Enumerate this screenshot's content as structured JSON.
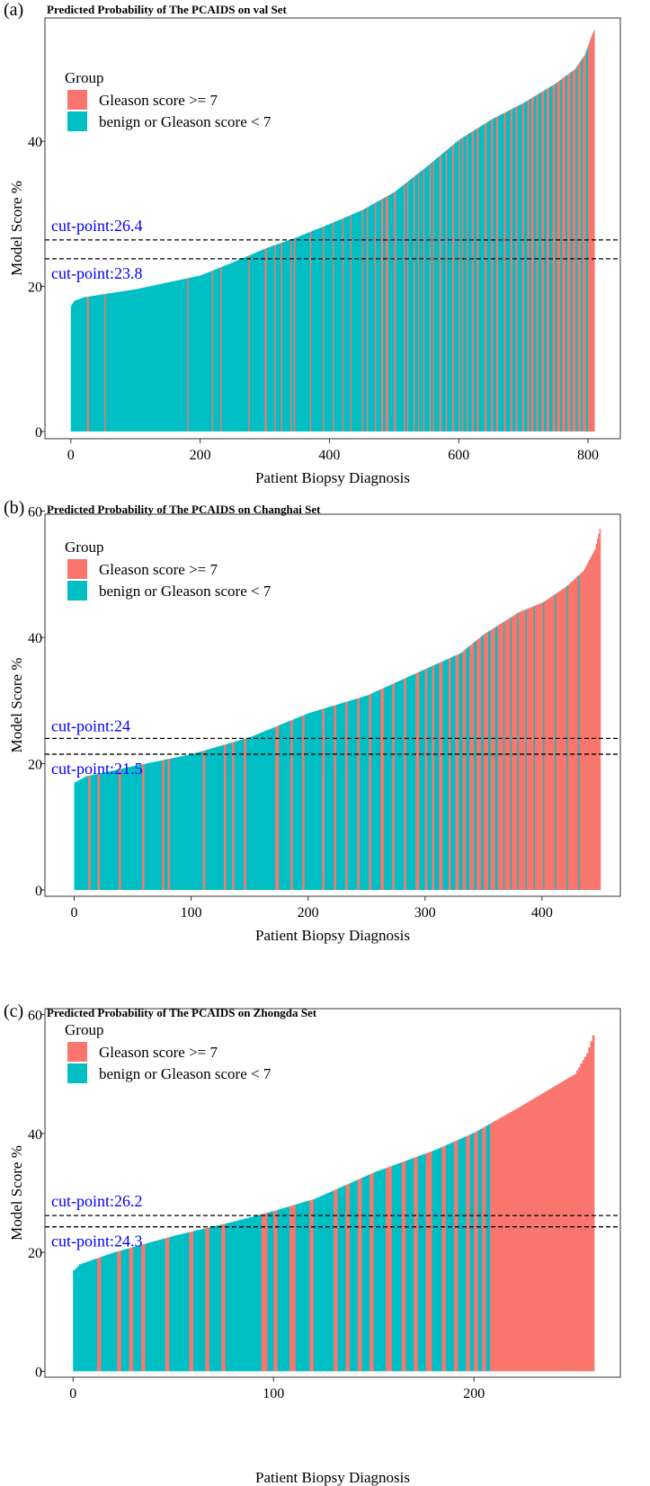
{
  "colors": {
    "high": "#F8766D",
    "low": "#00BFC4",
    "cut": "#0000FF",
    "frame": "#333333"
  },
  "legend": {
    "title": "Group",
    "labels": [
      "Gleason score >= 7",
      "benign or Gleason score < 7"
    ]
  },
  "panels": [
    {
      "letter": "(a)",
      "title": "Predicted Probability of The PCAIDS on val Set"
    },
    {
      "letter": "(b)",
      "title": "Predicted Probability of The PCAIDS on Changhai Set"
    },
    {
      "letter": "(c)",
      "title": "Predicted Probability of The PCAIDS on Zhongda Set"
    }
  ],
  "chart_data": [
    {
      "type": "bar",
      "title": "Predicted Probability of The PCAIDS on val Set",
      "xlabel": "Patient Biopsy Diagnosis",
      "ylabel": "Model Score %",
      "n": 810,
      "xlim": [
        -40,
        850
      ],
      "ylim": [
        -1,
        57
      ],
      "xticks": [
        0,
        200,
        400,
        600,
        800
      ],
      "yticks": [
        0,
        20,
        40
      ],
      "curve": [
        [
          0,
          17.3
        ],
        [
          5,
          18.0
        ],
        [
          20,
          18.5
        ],
        [
          100,
          19.6
        ],
        [
          200,
          21.5
        ],
        [
          250,
          23.3
        ],
        [
          300,
          25.2
        ],
        [
          350,
          26.8
        ],
        [
          400,
          28.6
        ],
        [
          450,
          30.5
        ],
        [
          500,
          33.0
        ],
        [
          550,
          36.5
        ],
        [
          600,
          40.2
        ],
        [
          650,
          43.0
        ],
        [
          700,
          45.3
        ],
        [
          750,
          48.0
        ],
        [
          780,
          50.0
        ],
        [
          795,
          52.0
        ],
        [
          805,
          54.5
        ],
        [
          810,
          55.5
        ]
      ],
      "high_ranges": [
        [
          25,
          27
        ],
        [
          52,
          53
        ],
        [
          180,
          181
        ],
        [
          218,
          219
        ],
        [
          231,
          232
        ],
        [
          275,
          276
        ],
        [
          300,
          302
        ],
        [
          315,
          316
        ],
        [
          325,
          326
        ],
        [
          340,
          341
        ],
        [
          345,
          346
        ],
        [
          370,
          371
        ],
        [
          390,
          391
        ],
        [
          405,
          406
        ],
        [
          420,
          421
        ],
        [
          432,
          433
        ],
        [
          450,
          451
        ],
        [
          458,
          459
        ],
        [
          470,
          471
        ],
        [
          480,
          482
        ],
        [
          487,
          490
        ],
        [
          500,
          502
        ],
        [
          515,
          516
        ],
        [
          520,
          521
        ],
        [
          530,
          531
        ],
        [
          537,
          538
        ],
        [
          545,
          546
        ],
        [
          555,
          556
        ],
        [
          560,
          561
        ],
        [
          570,
          572
        ],
        [
          580,
          581
        ],
        [
          590,
          592
        ],
        [
          600,
          601
        ],
        [
          605,
          606
        ],
        [
          612,
          613
        ],
        [
          620,
          622
        ],
        [
          628,
          630
        ],
        [
          640,
          642
        ],
        [
          650,
          652
        ],
        [
          658,
          660
        ],
        [
          670,
          672
        ],
        [
          680,
          682
        ],
        [
          688,
          690
        ],
        [
          698,
          700
        ],
        [
          706,
          708
        ],
        [
          712,
          715
        ],
        [
          720,
          722
        ],
        [
          728,
          731
        ],
        [
          736,
          739
        ],
        [
          745,
          748
        ],
        [
          752,
          756
        ],
        [
          760,
          764
        ],
        [
          768,
          772
        ],
        [
          776,
          780
        ],
        [
          784,
          788
        ],
        [
          792,
          796
        ],
        [
          800,
          810
        ]
      ],
      "cut_points": [
        {
          "value": 26.4,
          "label": "cut-point:26.4"
        },
        {
          "value": 23.8,
          "label": "cut-point:23.8"
        }
      ],
      "legend_position": "top-left"
    },
    {
      "type": "bar",
      "title": "Predicted Probability of The PCAIDS on Changhai Set",
      "xlabel": "Patient Biopsy Diagnosis",
      "ylabel": "Model Score %",
      "n": 450,
      "xlim": [
        -25,
        467
      ],
      "ylim": [
        -1,
        59.5
      ],
      "xticks": [
        0,
        100,
        200,
        300,
        400
      ],
      "yticks": [
        0,
        20,
        40,
        60
      ],
      "curve": [
        [
          0,
          17.0
        ],
        [
          10,
          18.0
        ],
        [
          50,
          19.6
        ],
        [
          100,
          21.5
        ],
        [
          150,
          24.2
        ],
        [
          200,
          28.0
        ],
        [
          250,
          30.8
        ],
        [
          300,
          35.0
        ],
        [
          330,
          37.5
        ],
        [
          350,
          40.5
        ],
        [
          380,
          44.0
        ],
        [
          400,
          45.5
        ],
        [
          420,
          48.0
        ],
        [
          435,
          50.5
        ],
        [
          445,
          54.0
        ],
        [
          450,
          58.0
        ]
      ],
      "high_ranges": [
        [
          12,
          13
        ],
        [
          20,
          21
        ],
        [
          38,
          39
        ],
        [
          58,
          59
        ],
        [
          75,
          76
        ],
        [
          80,
          81
        ],
        [
          110,
          111
        ],
        [
          128,
          129
        ],
        [
          135,
          136
        ],
        [
          145,
          146
        ],
        [
          172,
          174
        ],
        [
          185,
          186
        ],
        [
          195,
          196
        ],
        [
          212,
          213
        ],
        [
          222,
          223
        ],
        [
          232,
          233
        ],
        [
          242,
          243
        ],
        [
          252,
          253
        ],
        [
          262,
          264
        ],
        [
          272,
          273
        ],
        [
          282,
          283
        ],
        [
          292,
          294
        ],
        [
          300,
          301
        ],
        [
          306,
          307
        ],
        [
          312,
          314
        ],
        [
          320,
          321
        ],
        [
          326,
          328
        ],
        [
          332,
          334
        ],
        [
          338,
          341
        ],
        [
          344,
          347
        ],
        [
          350,
          353
        ],
        [
          356,
          359
        ],
        [
          362,
          366
        ],
        [
          368,
          372
        ],
        [
          374,
          378
        ],
        [
          380,
          385
        ],
        [
          387,
          392
        ],
        [
          394,
          400
        ],
        [
          402,
          410
        ],
        [
          412,
          420
        ],
        [
          422,
          430
        ],
        [
          432,
          450
        ]
      ],
      "cut_points": [
        {
          "value": 24,
          "label": "cut-point:24"
        },
        {
          "value": 21.5,
          "label": "cut-point:21.5"
        }
      ],
      "legend_position": "top-left"
    },
    {
      "type": "bar",
      "title": "Predicted Probability of The PCAIDS on Zhongda Set",
      "xlabel": "Patient Biopsy Diagnosis",
      "ylabel": "Model Score %",
      "n": 260,
      "xlim": [
        -14,
        273
      ],
      "ylim": [
        -1,
        61
      ],
      "xticks": [
        0,
        100,
        200
      ],
      "yticks": [
        0,
        20,
        40,
        60
      ],
      "curve": [
        [
          0,
          17.0
        ],
        [
          3,
          18.0
        ],
        [
          20,
          20.0
        ],
        [
          50,
          22.8
        ],
        [
          80,
          25.2
        ],
        [
          100,
          27.0
        ],
        [
          120,
          29.0
        ],
        [
          150,
          33.5
        ],
        [
          180,
          37.2
        ],
        [
          200,
          40.2
        ],
        [
          220,
          44.0
        ],
        [
          240,
          48.0
        ],
        [
          250,
          50.0
        ],
        [
          256,
          53.5
        ],
        [
          260,
          57.5
        ]
      ],
      "high_ranges": [
        [
          12,
          13
        ],
        [
          22,
          23
        ],
        [
          28,
          29
        ],
        [
          34,
          35
        ],
        [
          46,
          47
        ],
        [
          58,
          59
        ],
        [
          66,
          67
        ],
        [
          74,
          75
        ],
        [
          94,
          96
        ],
        [
          100,
          101
        ],
        [
          108,
          110
        ],
        [
          118,
          119
        ],
        [
          130,
          131
        ],
        [
          136,
          137
        ],
        [
          142,
          143
        ],
        [
          148,
          149
        ],
        [
          156,
          158
        ],
        [
          164,
          165
        ],
        [
          170,
          171
        ],
        [
          176,
          178
        ],
        [
          184,
          185
        ],
        [
          190,
          191
        ],
        [
          196,
          197
        ],
        [
          200,
          201
        ],
        [
          204,
          205
        ],
        [
          208,
          260
        ]
      ],
      "cut_points": [
        {
          "value": 26.2,
          "label": "cut-point:26.2"
        },
        {
          "value": 24.3,
          "label": "cut-point:24.3"
        }
      ],
      "legend_position": "top-left"
    }
  ]
}
